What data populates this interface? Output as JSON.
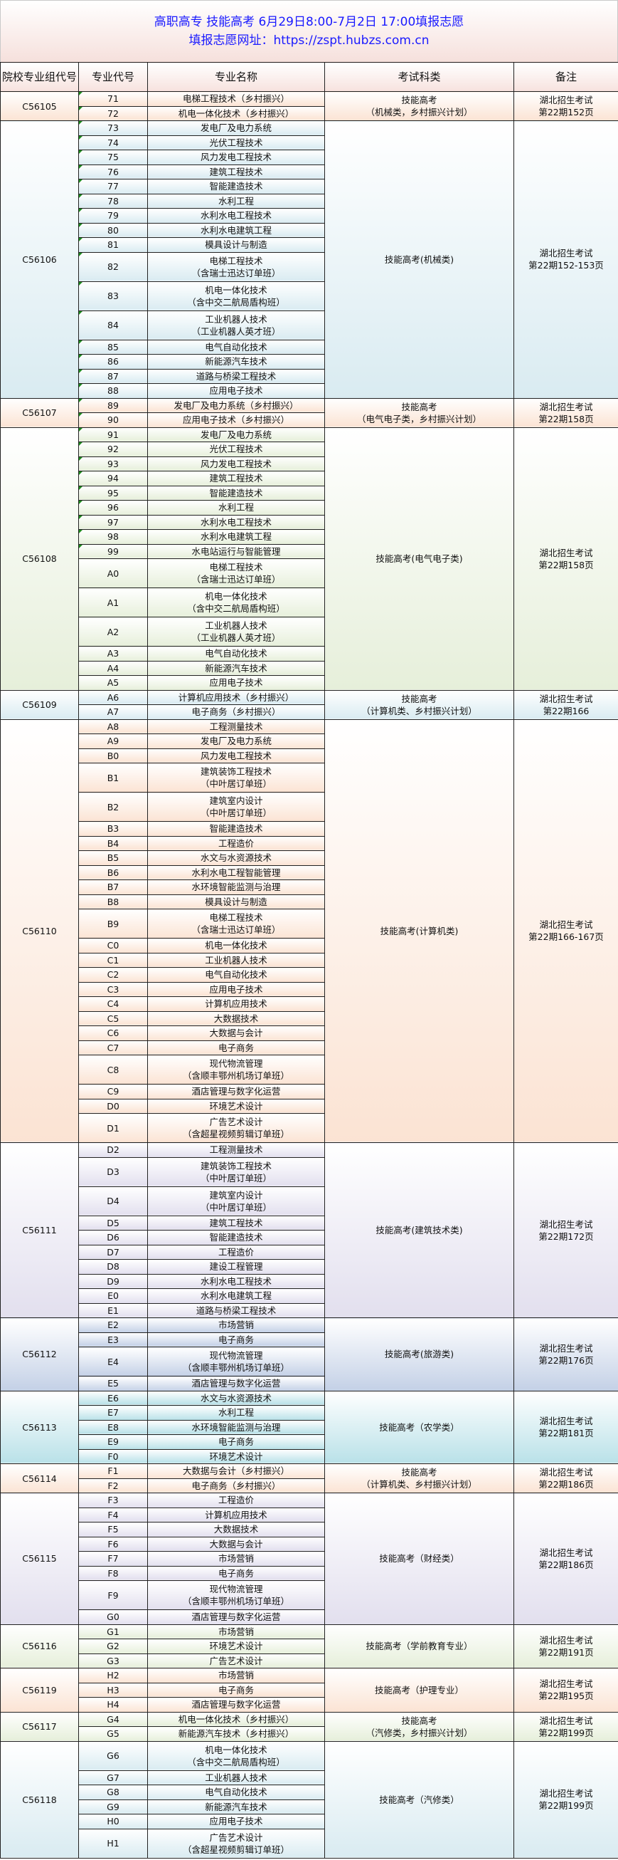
{
  "title": {
    "line1": "高职高专 技能高考 6月29日8:00-7月2日 17:00填报志愿",
    "line2": "填报志愿网址：https://zspt.hubzs.com.cn"
  },
  "headers": [
    "院校专业组代号",
    "专业代号",
    "专业名称",
    "考试科类",
    "备注"
  ],
  "colors": {
    "title": "#1a1aff",
    "marker": "#1c8a1c"
  },
  "groups": [
    {
      "code": "C56105",
      "exam": "技能高考\n（机械类，乡村振兴计划）",
      "note": "湖北招生考试\n第22期152页",
      "color": "#fbe3d3",
      "rows": [
        {
          "code": "71",
          "name": "电梯工程技术（乡村振兴）",
          "marker": true
        },
        {
          "code": "72",
          "name": "机电一体化技术（乡村振兴）",
          "marker": true
        }
      ]
    },
    {
      "code": "C56106",
      "exam": "技能高考(机械类)",
      "note": "湖北招生考试\n第22期152-153页",
      "color": "#d9ebf1",
      "rows": [
        {
          "code": "73",
          "name": "发电厂及电力系统",
          "marker": true
        },
        {
          "code": "74",
          "name": "光伏工程技术",
          "marker": true
        },
        {
          "code": "75",
          "name": "风力发电工程技术",
          "marker": true
        },
        {
          "code": "76",
          "name": "建筑工程技术",
          "marker": true
        },
        {
          "code": "77",
          "name": "智能建造技术",
          "marker": true
        },
        {
          "code": "78",
          "name": "水利工程",
          "marker": true
        },
        {
          "code": "79",
          "name": "水利水电工程技术",
          "marker": true
        },
        {
          "code": "80",
          "name": "水利水电建筑工程",
          "marker": true
        },
        {
          "code": "81",
          "name": "模具设计与制造",
          "marker": true
        },
        {
          "code": "82",
          "name": "电梯工程技术\n（含瑞士迅达订单班）",
          "marker": true
        },
        {
          "code": "83",
          "name": "机电一体化技术\n（含中交二航局盾构班）",
          "marker": true
        },
        {
          "code": "84",
          "name": "工业机器人技术\n（工业机器人英才班）",
          "marker": true
        },
        {
          "code": "85",
          "name": "电气自动化技术",
          "marker": true
        },
        {
          "code": "86",
          "name": "新能源汽车技术",
          "marker": true
        },
        {
          "code": "87",
          "name": "道路与桥梁工程技术",
          "marker": true
        },
        {
          "code": "88",
          "name": "应用电子技术",
          "marker": true
        }
      ]
    },
    {
      "code": "C56107",
      "exam": "技能高考\n（电气电子类，乡村振兴计划）",
      "note": "湖北招生考试\n第22期158页",
      "color": "#fbe3d3",
      "rows": [
        {
          "code": "89",
          "name": "发电厂及电力系统（乡村振兴）",
          "marker": true
        },
        {
          "code": "90",
          "name": "应用电子技术（乡村振兴）",
          "marker": true
        }
      ]
    },
    {
      "code": "C56108",
      "exam": "技能高考(电气电子类)",
      "note": "湖北招生考试\n第22期158页",
      "color": "#e6efda",
      "rows": [
        {
          "code": "91",
          "name": "发电厂及电力系统",
          "marker": true
        },
        {
          "code": "92",
          "name": "光伏工程技术",
          "marker": true
        },
        {
          "code": "93",
          "name": "风力发电工程技术",
          "marker": true
        },
        {
          "code": "94",
          "name": "建筑工程技术",
          "marker": true
        },
        {
          "code": "95",
          "name": "智能建造技术",
          "marker": true
        },
        {
          "code": "96",
          "name": "水利工程",
          "marker": true
        },
        {
          "code": "97",
          "name": "水利水电工程技术",
          "marker": true
        },
        {
          "code": "98",
          "name": "水利水电建筑工程",
          "marker": true
        },
        {
          "code": "99",
          "name": "水电站运行与智能管理",
          "marker": true
        },
        {
          "code": "A0",
          "name": "电梯工程技术\n（含瑞士迅达订单班）"
        },
        {
          "code": "A1",
          "name": "机电一体化技术\n（含中交二航局盾构班）"
        },
        {
          "code": "A2",
          "name": "工业机器人技术\n（工业机器人英才班）"
        },
        {
          "code": "A3",
          "name": "电气自动化技术"
        },
        {
          "code": "A4",
          "name": "新能源汽车技术"
        },
        {
          "code": "A5",
          "name": "应用电子技术"
        }
      ]
    },
    {
      "code": "C56109",
      "exam": "技能高考\n（计算机类、乡村振兴计划）",
      "note": "湖北招生考试\n第22期166",
      "color": "#d9ebf1",
      "rows": [
        {
          "code": "A6",
          "name": "计算机应用技术（乡村振兴）"
        },
        {
          "code": "A7",
          "name": "电子商务（乡村振兴）"
        }
      ]
    },
    {
      "code": "C56110",
      "exam": "技能高考(计算机类)",
      "note": "湖北招生考试\n第22期166-167页",
      "color": "#fbe3d3",
      "rows": [
        {
          "code": "A8",
          "name": "工程测量技术"
        },
        {
          "code": "A9",
          "name": "发电厂及电力系统"
        },
        {
          "code": "B0",
          "name": "风力发电工程技术"
        },
        {
          "code": "B1",
          "name": "建筑装饰工程技术\n（中叶居订单班）"
        },
        {
          "code": "B2",
          "name": "建筑室内设计\n（中叶居订单班）"
        },
        {
          "code": "B3",
          "name": "智能建造技术"
        },
        {
          "code": "B4",
          "name": "工程造价"
        },
        {
          "code": "B5",
          "name": "水文与水资源技术"
        },
        {
          "code": "B6",
          "name": "水利水电工程智能管理"
        },
        {
          "code": "B7",
          "name": "水环境智能监测与治理"
        },
        {
          "code": "B8",
          "name": "模具设计与制造"
        },
        {
          "code": "B9",
          "name": "电梯工程技术\n（含瑞士迅达订单班）"
        },
        {
          "code": "C0",
          "name": "机电一体化技术"
        },
        {
          "code": "C1",
          "name": "工业机器人技术"
        },
        {
          "code": "C2",
          "name": "电气自动化技术"
        },
        {
          "code": "C3",
          "name": "应用电子技术"
        },
        {
          "code": "C4",
          "name": "计算机应用技术"
        },
        {
          "code": "C5",
          "name": "大数据技术"
        },
        {
          "code": "C6",
          "name": "大数据与会计"
        },
        {
          "code": "C7",
          "name": "电子商务"
        },
        {
          "code": "C8",
          "name": "现代物流管理\n（含顺丰鄂州机场订单班）"
        },
        {
          "code": "C9",
          "name": "酒店管理与数字化运营"
        },
        {
          "code": "D0",
          "name": "环境艺术设计"
        },
        {
          "code": "D1",
          "name": "广告艺术设计\n（含超星视频剪辑订单班）"
        }
      ]
    },
    {
      "code": "C56111",
      "exam": "技能高考(建筑技术类)",
      "note": "湖北招生考试\n第22期172页",
      "color": "#e2dfee",
      "rows": [
        {
          "code": "D2",
          "name": "工程测量技术"
        },
        {
          "code": "D3",
          "name": "建筑装饰工程技术\n（中叶居订单班）"
        },
        {
          "code": "D4",
          "name": "建筑室内设计\n（中叶居订单班）"
        },
        {
          "code": "D5",
          "name": "建筑工程技术"
        },
        {
          "code": "D6",
          "name": "智能建造技术"
        },
        {
          "code": "D7",
          "name": "工程造价"
        },
        {
          "code": "D8",
          "name": "建设工程管理"
        },
        {
          "code": "D9",
          "name": "水利水电工程技术"
        },
        {
          "code": "E0",
          "name": "水利水电建筑工程"
        },
        {
          "code": "E1",
          "name": "道路与桥梁工程技术"
        }
      ]
    },
    {
      "code": "C56112",
      "exam": "技能高考(旅游类)",
      "note": "湖北招生考试\n第22期176页",
      "color": "#c3d0e6",
      "rows": [
        {
          "code": "E2",
          "name": "市场营销"
        },
        {
          "code": "E3",
          "name": "电子商务"
        },
        {
          "code": "E4",
          "name": "现代物流管理\n（含顺丰鄂州机场订单班）"
        },
        {
          "code": "E5",
          "name": "酒店管理与数字化运营"
        }
      ]
    },
    {
      "code": "C56113",
      "exam": "技能高考（农学类）",
      "note": "湖北招生考试\n第22期181页",
      "color": "#b9e1e8",
      "rows": [
        {
          "code": "E6",
          "name": "水文与水资源技术"
        },
        {
          "code": "E7",
          "name": "水利工程"
        },
        {
          "code": "E8",
          "name": "水环境智能监测与治理"
        },
        {
          "code": "E9",
          "name": "电子商务"
        },
        {
          "code": "F0",
          "name": "环境艺术设计"
        }
      ]
    },
    {
      "code": "C56114",
      "exam": "技能高考\n（计算机类、乡村振兴计划）",
      "note": "湖北招生考试\n第22期186页",
      "color": "#fbe3d3",
      "rows": [
        {
          "code": "F1",
          "name": "大数据与会计（乡村振兴）"
        },
        {
          "code": "F2",
          "name": "电子商务（乡村振兴）"
        }
      ]
    },
    {
      "code": "C56115",
      "exam": "技能高考（财经类）",
      "note": "湖北招生考试\n第22期186页",
      "color": "#e2dfee",
      "rows": [
        {
          "code": "F3",
          "name": "工程造价"
        },
        {
          "code": "F4",
          "name": "计算机应用技术"
        },
        {
          "code": "F5",
          "name": "大数据技术"
        },
        {
          "code": "F6",
          "name": "大数据与会计"
        },
        {
          "code": "F7",
          "name": "市场营销"
        },
        {
          "code": "F8",
          "name": "电子商务"
        },
        {
          "code": "F9",
          "name": "现代物流管理\n（含顺丰鄂州机场订单班）"
        },
        {
          "code": "G0",
          "name": "酒店管理与数字化运营"
        }
      ]
    },
    {
      "code": "C56116",
      "exam": "技能高考（学前教育专业）",
      "note": "湖北招生考试\n第22期191页",
      "color": "#e6efda",
      "rows": [
        {
          "code": "G1",
          "name": "市场营销"
        },
        {
          "code": "G2",
          "name": "环境艺术设计"
        },
        {
          "code": "G3",
          "name": "广告艺术设计"
        }
      ]
    },
    {
      "code": "C56119",
      "exam": "技能高考（护理专业）",
      "note": "湖北招生考试\n第22期195页",
      "color": "#fbe3d3",
      "rows": [
        {
          "code": "H2",
          "name": "市场营销"
        },
        {
          "code": "H3",
          "name": "电子商务"
        },
        {
          "code": "H4",
          "name": "酒店管理与数字化运营"
        }
      ]
    },
    {
      "code": "C56117",
      "exam": "技能高考\n（汽修类，乡村振兴计划）",
      "note": "湖北招生考试\n第22期199页",
      "color": "#e6efda",
      "rows": [
        {
          "code": "G4",
          "name": "机电一体化技术（乡村振兴）"
        },
        {
          "code": "G5",
          "name": "新能源汽车技术（乡村振兴）"
        }
      ]
    },
    {
      "code": "C56118",
      "exam": "技能高考（汽修类）",
      "note": "湖北招生考试\n第22期199页",
      "color": "#d9ebf1",
      "rows": [
        {
          "code": "G6",
          "name": "机电一体化技术\n（含中交二航局盾构班）"
        },
        {
          "code": "G7",
          "name": "工业机器人技术"
        },
        {
          "code": "G8",
          "name": "电气自动化技术"
        },
        {
          "code": "G9",
          "name": "新能源汽车技术"
        },
        {
          "code": "H0",
          "name": "应用电子技术"
        },
        {
          "code": "H1",
          "name": "广告艺术设计\n（含超星视频剪辑订单班）"
        }
      ]
    }
  ]
}
